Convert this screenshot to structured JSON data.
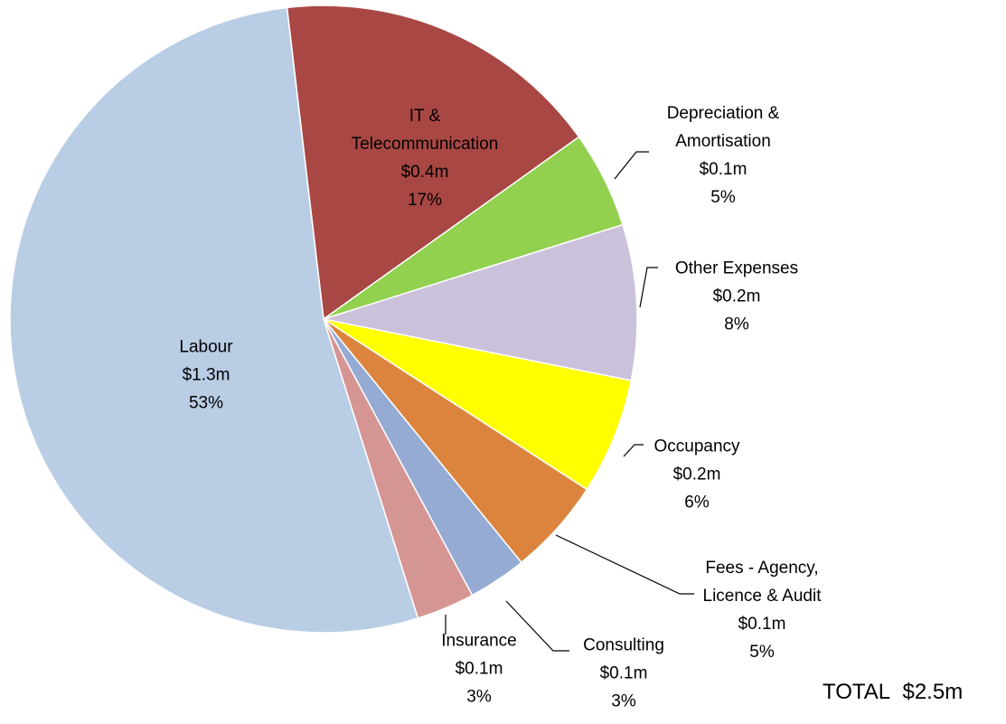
{
  "chart_data": {
    "type": "pie",
    "categories": [
      "IT &\nTelecommunication",
      "Depreciation &\nAmortisation",
      "Other Expenses",
      "Occupancy",
      "Fees - Agency,\nLicence & Audit",
      "Consulting",
      "Insurance",
      "Labour"
    ],
    "amounts": [
      "$0.4m",
      "$0.1m",
      "$0.2m",
      "$0.2m",
      "$0.1m",
      "$0.1m",
      "$0.1m",
      "$1.3m"
    ],
    "values": [
      17,
      5,
      8,
      6,
      5,
      3,
      3,
      53
    ],
    "value_labels": [
      "17%",
      "5%",
      "8%",
      "6%",
      "5%",
      "3%",
      "3%",
      "53%"
    ],
    "colors": [
      "#a94744",
      "#92d050",
      "#ccc1da",
      "#ffff00",
      "#dc843d",
      "#95abd4",
      "#d59593",
      "#b9cde5"
    ],
    "total_label": "TOTAL",
    "total": "$2.5m"
  }
}
